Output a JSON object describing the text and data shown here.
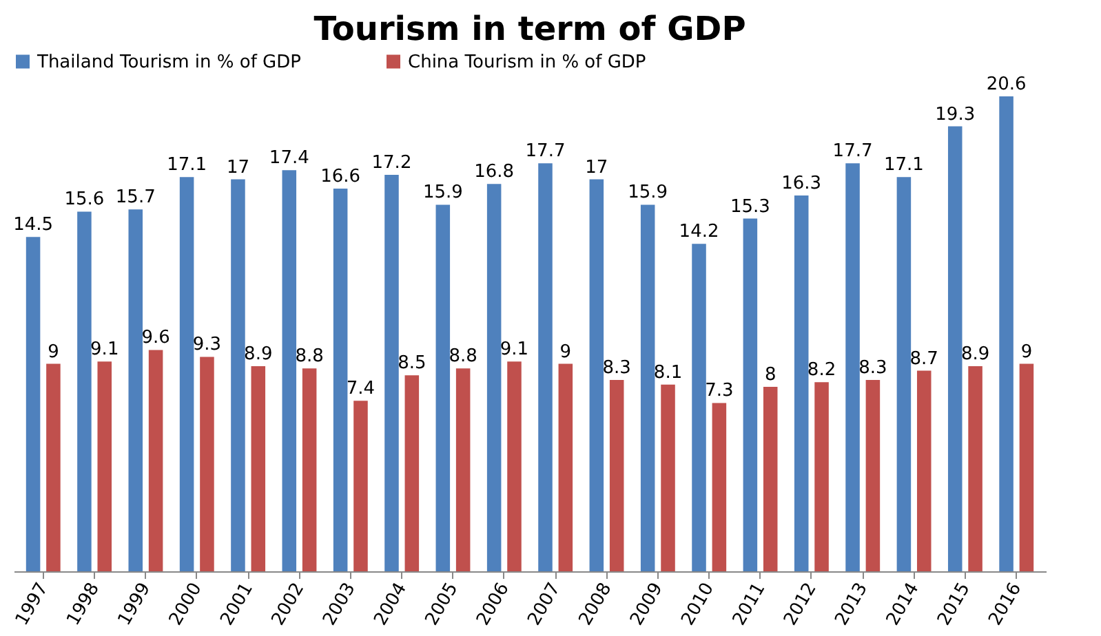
{
  "chart_data": {
    "type": "bar",
    "title": "Tourism in term of GDP",
    "categories": [
      "1997",
      "1998",
      "1999",
      "2000",
      "2001",
      "2002",
      "2003",
      "2004",
      "2005",
      "2006",
      "2007",
      "2008",
      "2009",
      "2010",
      "2011",
      "2012",
      "2013",
      "2014",
      "2015",
      "2016"
    ],
    "series": [
      {
        "name": "Thailand Tourism in % of GDP",
        "color": "#4f81bd",
        "values": [
          14.5,
          15.6,
          15.7,
          17.1,
          17,
          17.4,
          16.6,
          17.2,
          15.9,
          16.8,
          17.7,
          17,
          15.9,
          14.2,
          15.3,
          16.3,
          17.7,
          17.1,
          19.3,
          20.6
        ]
      },
      {
        "name": "China Tourism in % of GDP",
        "color": "#c0504d",
        "values": [
          9,
          9.1,
          9.6,
          9.3,
          8.9,
          8.8,
          7.4,
          8.5,
          8.8,
          9.1,
          9,
          8.3,
          8.1,
          7.3,
          8,
          8.2,
          8.3,
          8.7,
          8.9,
          9
        ]
      }
    ],
    "data_labels": true,
    "legend": "top",
    "grid": false
  }
}
